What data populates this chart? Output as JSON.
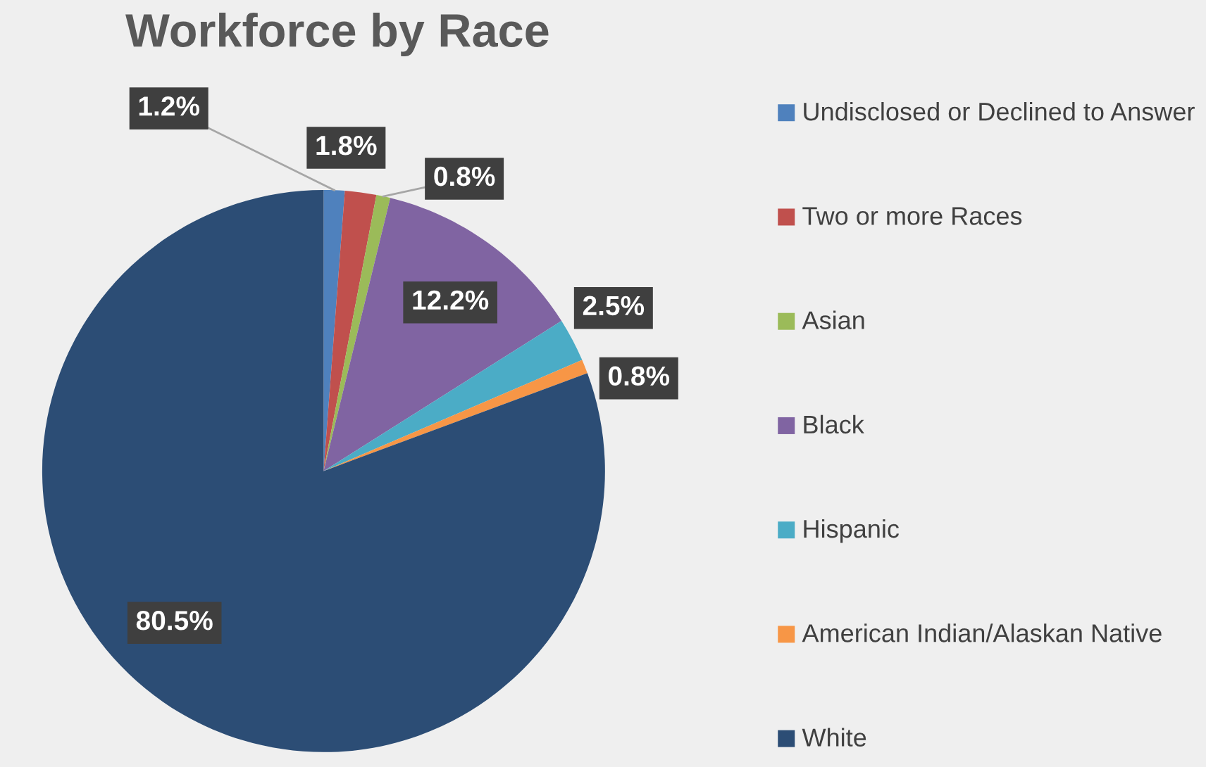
{
  "chart_data": {
    "type": "pie",
    "title": "Workforce by Race",
    "categories": [
      "Undisclosed or Declined to Answer",
      "Two or more Races",
      "Asian",
      "Black",
      "Hispanic",
      "American Indian/Alaskan Native",
      "White"
    ],
    "values": [
      1.2,
      1.8,
      0.8,
      12.2,
      2.5,
      0.8,
      80.5
    ],
    "value_labels": [
      "1.2%",
      "1.8%",
      "0.8%",
      "12.2%",
      "2.5%",
      "0.8%",
      "80.5%"
    ],
    "colors": [
      "#4f81bd",
      "#c0504d",
      "#9bbb59",
      "#8064a2",
      "#4bacc6",
      "#f79646",
      "#2c4d75"
    ],
    "legend": "right"
  }
}
